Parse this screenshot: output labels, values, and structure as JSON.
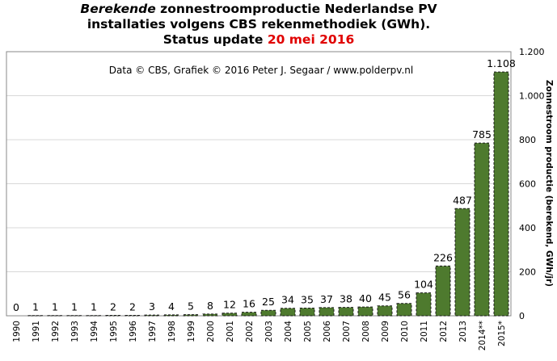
{
  "title": {
    "line1_italic": "Berekende",
    "line1_rest": " zonnestroomproductie Nederlandse PV",
    "line2": "installaties volgens CBS rekenmethodiek (GWh).",
    "line3_prefix": "Status update ",
    "line3_date": "20 mei 2016"
  },
  "colors": {
    "bar_fill": "#4e7a2e",
    "date_red": "#e00000",
    "frame": "#888888",
    "grid": "#d8d8d8"
  },
  "chart_data": {
    "type": "bar",
    "title": "Berekende zonnestroomproductie Nederlandse PV installaties volgens CBS rekenmethodiek (GWh). Status update 20 mei 2016",
    "annotation": "Data © CBS, Grafiek © 2016 Peter J. Segaar / www.polderpv.nl",
    "ylabel": "Zonnestroom productie (berekend, GWh/jr)",
    "xlabel": "",
    "ylim": [
      0,
      1200
    ],
    "y_ticks": [
      {
        "value": 0,
        "label": "0"
      },
      {
        "value": 200,
        "label": "200"
      },
      {
        "value": 400,
        "label": "400"
      },
      {
        "value": 600,
        "label": "600"
      },
      {
        "value": 800,
        "label": "800"
      },
      {
        "value": 1000,
        "label": "1.000"
      },
      {
        "value": 1200,
        "label": "1.200"
      }
    ],
    "y_axis_side": "right",
    "grid": "horizontal",
    "categories": [
      "1990",
      "1991",
      "1992",
      "1993",
      "1994",
      "1995",
      "1996",
      "1997",
      "1998",
      "1999",
      "2000",
      "2001",
      "2002",
      "2003",
      "2004",
      "2005",
      "2006",
      "2007",
      "2008",
      "2009",
      "2010",
      "2011",
      "2012",
      "2013",
      "2014**",
      "2015*"
    ],
    "values": [
      0,
      1,
      1,
      1,
      1,
      2,
      2,
      3,
      4,
      5,
      8,
      12,
      16,
      25,
      34,
      35,
      37,
      38,
      40,
      45,
      56,
      104,
      226,
      487,
      785,
      1108
    ],
    "data_labels": [
      "0",
      "1",
      "1",
      "1",
      "1",
      "2",
      "2",
      "3",
      "4",
      "5",
      "8",
      "12",
      "16",
      "25",
      "34",
      "35",
      "37",
      "38",
      "40",
      "45",
      "56",
      "104",
      "226",
      "487",
      "785",
      "1.108"
    ]
  }
}
